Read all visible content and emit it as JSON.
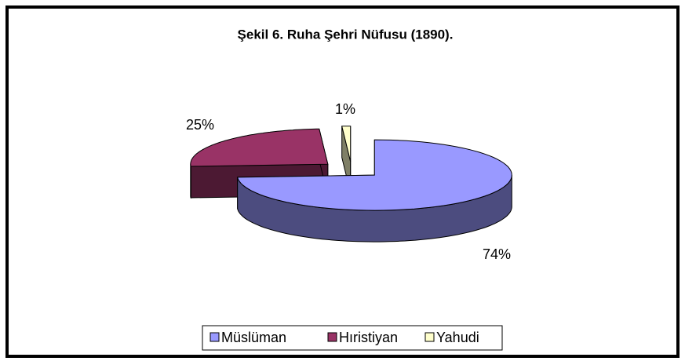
{
  "chart_data": {
    "type": "pie3d",
    "title": "Şekil 6. Ruha Şehri Nüfusu (1890).",
    "categories": [
      "Müslüman",
      "Hıristiyan",
      "Yahudi"
    ],
    "values": [
      74,
      25,
      1
    ],
    "value_labels": [
      "74%",
      "25%",
      "1%"
    ],
    "colors": [
      "#9999ff",
      "#993366",
      "#ffffcc"
    ],
    "legend": "bottom"
  }
}
